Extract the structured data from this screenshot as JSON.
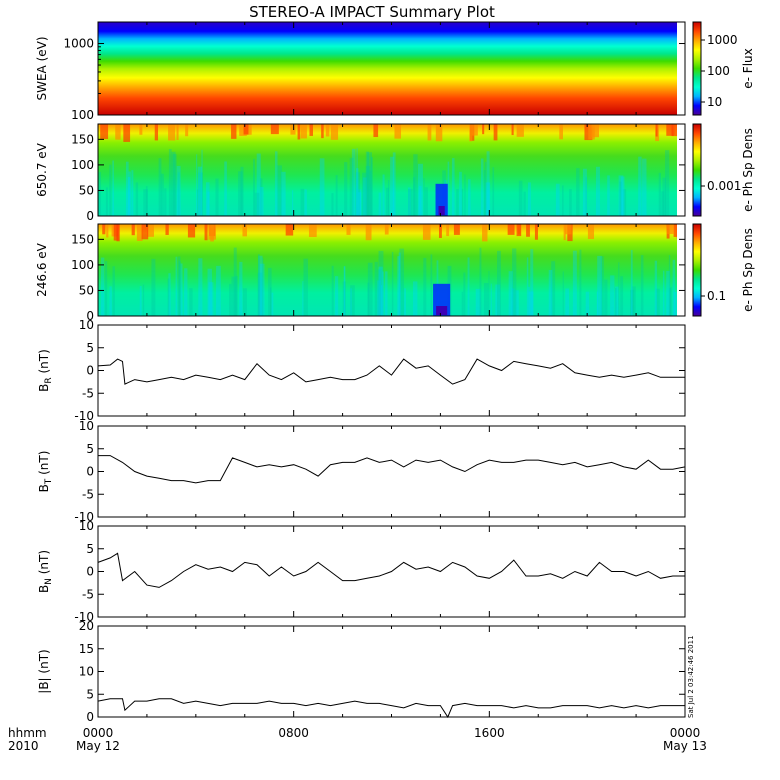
{
  "title": "STEREO-A IMPACT Summary Plot",
  "timestamp": "Sat Jul  2 03:42:46 2011",
  "time_axis": {
    "corner_label": "hhmm",
    "corner_year": "2010",
    "ticks": [
      {
        "hours": 0,
        "label": "0000",
        "date": "May 12"
      },
      {
        "hours": 8,
        "label": "0800",
        "date": ""
      },
      {
        "hours": 16,
        "label": "1600",
        "date": ""
      },
      {
        "hours": 24,
        "label": "0000",
        "date": "May 13"
      }
    ]
  },
  "colors": {
    "colormap": [
      "#4b0096",
      "#0000ff",
      "#00b4ff",
      "#00ffd2",
      "#00e68c",
      "#3cdc00",
      "#aaf000",
      "#ffff00",
      "#ffaa00",
      "#ff4600",
      "#c80000"
    ],
    "trace": "#000000",
    "frame": "#000000"
  },
  "chart_data": [
    {
      "type": "heatmap",
      "id": "swea",
      "ylabel": "SWEA (eV)",
      "yscale": "log",
      "ylim": [
        100,
        2000
      ],
      "yticks": [
        {
          "v": 1000,
          "label": "1000"
        },
        {
          "v": 100,
          "label": "100"
        }
      ],
      "colorbar": {
        "label": "e- Flux",
        "scale": "log",
        "ticks": [
          "1000",
          "100",
          "10"
        ]
      },
      "description_profile": [
        {
          "y_fraction": 0.0,
          "color_index": 10
        },
        {
          "y_fraction": 0.25,
          "color_index": 9
        },
        {
          "y_fraction": 0.45,
          "color_index": 8
        },
        {
          "y_fraction": 0.6,
          "color_index": 6
        },
        {
          "y_fraction": 0.72,
          "color_index": 4
        },
        {
          "y_fraction": 0.82,
          "color_index": 2
        },
        {
          "y_fraction": 1.0,
          "color_index": 1
        }
      ]
    },
    {
      "type": "heatmap",
      "id": "pad650",
      "ylabel": "650.7 eV",
      "ylim": [
        0,
        180
      ],
      "yticks": [
        {
          "v": 0,
          "label": "0"
        },
        {
          "v": 50,
          "label": "50"
        },
        {
          "v": 100,
          "label": "100"
        },
        {
          "v": 150,
          "label": "150"
        }
      ],
      "colorbar": {
        "label": "e- Ph Sp Dens",
        "ticks": [
          "0.001"
        ]
      },
      "dropout_hours": [
        13.8,
        14.3
      ]
    },
    {
      "type": "heatmap",
      "id": "pad246",
      "ylabel": "246.6 eV",
      "ylim": [
        0,
        180
      ],
      "yticks": [
        {
          "v": 0,
          "label": "0"
        },
        {
          "v": 50,
          "label": "50"
        },
        {
          "v": 100,
          "label": "100"
        },
        {
          "v": 150,
          "label": "150"
        }
      ],
      "colorbar": {
        "label": "e- Ph Sp Dens",
        "ticks": [
          "0.1"
        ]
      },
      "dropout_hours": [
        13.7,
        14.4
      ]
    },
    {
      "type": "line",
      "id": "br",
      "ylabel": "B",
      "ylabel_sub": "R",
      "ylabel_unit": " (nT)",
      "ylim": [
        -10,
        10
      ],
      "yticks": [
        {
          "v": 10,
          "label": "10"
        },
        {
          "v": 5,
          "label": "5"
        },
        {
          "v": 0,
          "label": "0"
        },
        {
          "v": -5,
          "label": "-5"
        },
        {
          "v": -10,
          "label": "-10"
        }
      ],
      "x_hours": [
        0,
        0.5,
        0.8,
        1.0,
        1.1,
        1.5,
        2,
        2.5,
        3,
        3.5,
        4,
        4.5,
        5,
        5.5,
        6,
        6.5,
        7,
        7.5,
        8,
        8.5,
        9,
        9.5,
        10,
        10.5,
        11,
        11.5,
        12,
        12.5,
        13,
        13.5,
        14,
        14.5,
        15,
        15.5,
        16,
        16.5,
        17,
        17.5,
        18,
        18.5,
        19,
        19.5,
        20,
        20.5,
        21,
        21.5,
        22,
        22.5,
        23,
        23.5,
        24
      ],
      "y": [
        1,
        1.2,
        2.5,
        2.0,
        -3.0,
        -2.0,
        -2.5,
        -2.0,
        -1.5,
        -2.0,
        -1.0,
        -1.5,
        -2.0,
        -1.0,
        -2.0,
        1.5,
        -1.0,
        -2.0,
        -0.5,
        -2.5,
        -2.0,
        -1.5,
        -2.0,
        -2.0,
        -1.0,
        1.0,
        -1.0,
        2.5,
        0.5,
        1.0,
        -1.0,
        -3.0,
        -2.0,
        2.5,
        1.0,
        0,
        2.0,
        1.5,
        1.0,
        0.5,
        1.5,
        -0.5,
        -1.0,
        -1.5,
        -1.0,
        -1.5,
        -1.0,
        -0.5,
        -1.5,
        -1.5,
        -1.5
      ]
    },
    {
      "type": "line",
      "id": "bt",
      "ylabel": "B",
      "ylabel_sub": "T",
      "ylabel_unit": " (nT)",
      "ylim": [
        -10,
        10
      ],
      "yticks": [
        {
          "v": 10,
          "label": "10"
        },
        {
          "v": 5,
          "label": "5"
        },
        {
          "v": 0,
          "label": "0"
        },
        {
          "v": -5,
          "label": "-5"
        },
        {
          "v": -10,
          "label": "-10"
        }
      ],
      "x_hours": [
        0,
        0.5,
        1.0,
        1.5,
        2,
        2.5,
        3,
        3.5,
        4,
        4.5,
        5,
        5.5,
        6,
        6.5,
        7,
        7.5,
        8,
        8.5,
        9,
        9.5,
        10,
        10.5,
        11,
        11.5,
        12,
        12.5,
        13,
        13.5,
        14,
        14.5,
        15,
        15.5,
        16,
        16.5,
        17,
        17.5,
        18,
        18.5,
        19,
        19.5,
        20,
        20.5,
        21,
        21.5,
        22,
        22.5,
        23,
        23.5,
        24
      ],
      "y": [
        3.5,
        3.5,
        2.0,
        0,
        -1.0,
        -1.5,
        -2.0,
        -2.0,
        -2.5,
        -2.0,
        -2.0,
        3.0,
        2.0,
        1.0,
        1.5,
        1.0,
        1.5,
        0.5,
        -1.0,
        1.5,
        2.0,
        2.0,
        3.0,
        2.0,
        2.5,
        1.0,
        2.5,
        2.0,
        2.5,
        1.0,
        0,
        1.5,
        2.5,
        2.0,
        2.0,
        2.5,
        2.5,
        2.0,
        1.5,
        2.0,
        1.0,
        1.5,
        2.0,
        1.0,
        0.5,
        2.5,
        0.5,
        0.5,
        1.0
      ]
    },
    {
      "type": "line",
      "id": "bn",
      "ylabel": "B",
      "ylabel_sub": "N",
      "ylabel_unit": " (nT)",
      "ylim": [
        -10,
        10
      ],
      "yticks": [
        {
          "v": 10,
          "label": "10"
        },
        {
          "v": 5,
          "label": "5"
        },
        {
          "v": 0,
          "label": "0"
        },
        {
          "v": -5,
          "label": "-5"
        },
        {
          "v": -10,
          "label": "-10"
        }
      ],
      "x_hours": [
        0,
        0.5,
        0.8,
        1.0,
        1.5,
        2,
        2.5,
        3,
        3.5,
        4,
        4.5,
        5,
        5.5,
        6,
        6.5,
        7,
        7.5,
        8,
        8.5,
        9,
        9.5,
        10,
        10.5,
        11,
        11.5,
        12,
        12.5,
        13,
        13.5,
        14,
        14.5,
        15,
        15.5,
        16,
        16.5,
        17,
        17.5,
        18,
        18.5,
        19,
        19.5,
        20,
        20.5,
        21,
        21.5,
        22,
        22.5,
        23,
        23.5,
        24
      ],
      "y": [
        2.0,
        3.0,
        4.0,
        -2.0,
        0,
        -3.0,
        -3.5,
        -2.0,
        0,
        1.5,
        0.5,
        1.0,
        0,
        2.0,
        1.5,
        -1.0,
        1.0,
        -1.0,
        0,
        2.0,
        0,
        -2.0,
        -2.0,
        -1.5,
        -1.0,
        0,
        2.0,
        0.5,
        1.0,
        0,
        2.0,
        1.0,
        -1.0,
        -1.5,
        0,
        2.5,
        -1.0,
        -1.0,
        -0.5,
        -1.5,
        0,
        -1.0,
        2.0,
        0,
        0,
        -1.0,
        0,
        -1.5,
        -1.0,
        -1.0
      ]
    },
    {
      "type": "line",
      "id": "bmag",
      "ylabel": "|B| (nT)",
      "ylim": [
        0,
        20
      ],
      "yticks": [
        {
          "v": 20,
          "label": "20"
        },
        {
          "v": 15,
          "label": "15"
        },
        {
          "v": 10,
          "label": "10"
        },
        {
          "v": 5,
          "label": "5"
        },
        {
          "v": 0,
          "label": "0"
        }
      ],
      "x_hours": [
        0,
        0.5,
        1.0,
        1.1,
        1.5,
        2,
        2.5,
        3,
        3.5,
        4,
        4.5,
        5,
        5.5,
        6,
        6.5,
        7,
        7.5,
        8,
        8.5,
        9,
        9.5,
        10,
        10.5,
        11,
        11.5,
        12,
        12.5,
        13,
        13.5,
        14,
        14.3,
        14.5,
        15,
        15.5,
        16,
        16.5,
        17,
        17.5,
        18,
        18.5,
        19,
        19.5,
        20,
        20.5,
        21,
        21.5,
        22,
        22.5,
        23,
        23.5,
        24
      ],
      "y": [
        3.5,
        4.0,
        4.0,
        1.5,
        3.5,
        3.5,
        4.0,
        4.0,
        3.0,
        3.5,
        3.0,
        2.5,
        3.0,
        3.0,
        3.0,
        3.5,
        3.0,
        3.0,
        2.5,
        3.0,
        2.5,
        3.0,
        3.5,
        3.0,
        3.0,
        2.5,
        2.0,
        3.0,
        2.5,
        2.5,
        0,
        2.5,
        3.0,
        2.5,
        2.5,
        2.5,
        2.0,
        2.5,
        2.0,
        2.0,
        2.5,
        2.5,
        2.5,
        2.0,
        2.5,
        2.0,
        2.5,
        2.0,
        2.5,
        2.5,
        2.5
      ]
    }
  ]
}
